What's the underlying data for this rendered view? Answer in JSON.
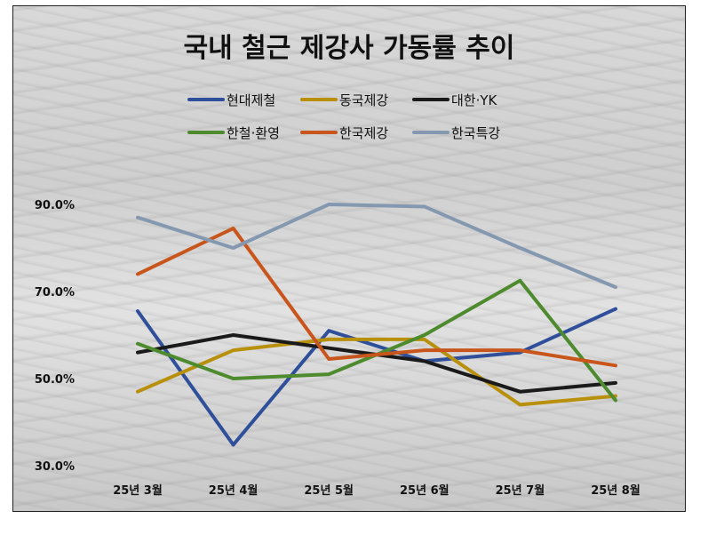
{
  "chart_data": {
    "type": "line",
    "title": "국내 철근 제강사 가동률 추이",
    "categories": [
      "25년 3월",
      "25년 4월",
      "25년 5월",
      "25년 6월",
      "25년 7월",
      "25년 8월"
    ],
    "y_ticks": [
      "90.0%",
      "70.0%",
      "50.0%",
      "30.0%"
    ],
    "y_tick_values": [
      90,
      70,
      50,
      30
    ],
    "ylim": [
      30,
      90
    ],
    "grid": false,
    "legend_position": "top",
    "series": [
      {
        "name": "현대제철",
        "color": "#2f4f9a",
        "values": [
          65.5,
          34.8,
          61.0,
          54.0,
          56.0,
          66.0
        ]
      },
      {
        "name": "동국제강",
        "color": "#b8900c",
        "values": [
          47.0,
          56.5,
          59.0,
          59.0,
          44.0,
          46.0
        ]
      },
      {
        "name": "대한·YK",
        "color": "#1a1a1a",
        "values": [
          56.0,
          60.0,
          57.0,
          54.0,
          47.0,
          49.0
        ]
      },
      {
        "name": "한철·환영",
        "color": "#4e8a2e",
        "values": [
          58.0,
          50.0,
          51.0,
          60.0,
          72.5,
          45.0
        ]
      },
      {
        "name": "한국제강",
        "color": "#c8561c",
        "values": [
          74.0,
          84.5,
          54.5,
          56.5,
          56.5,
          53.0
        ]
      },
      {
        "name": "한국특강",
        "color": "#8498b0",
        "values": [
          87.0,
          80.0,
          90.0,
          89.5,
          80.0,
          71.0
        ]
      }
    ]
  }
}
